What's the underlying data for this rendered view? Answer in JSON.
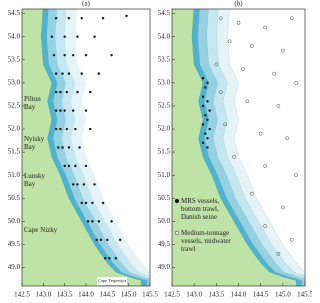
{
  "chart_data": [
    {
      "type": "scatter",
      "title": "(a)",
      "xlim": [
        142.5,
        145.5
      ],
      "ylim": [
        48.6,
        54.6
      ],
      "xticks": [
        142.5,
        {
          "value": 143,
          "label": "143.0"
        },
        143.5,
        {
          "value": 144,
          "label": "144.0"
        },
        144.5,
        {
          "value": 145,
          "label": "145.0"
        },
        145.5
      ],
      "yticks": [
        {
          "value": 49,
          "label": "49.0"
        },
        49.5,
        {
          "value": 50,
          "label": "50.0"
        },
        50.5,
        {
          "value": 51,
          "label": "51.0"
        },
        51.5,
        {
          "value": 52,
          "label": "52.0"
        },
        52.5,
        {
          "value": 53,
          "label": "53.0"
        },
        53.5,
        {
          "value": 54,
          "label": "54.0"
        },
        54.5
      ],
      "annotations": [
        "Piltun Bay",
        "Nyisky Bay",
        "Lunsky Bay",
        "Cape Nizky",
        "Cape Terpeniya"
      ],
      "series": [
        {
          "color": "#111111",
          "filled": true,
          "x": [
            143.3,
            143.6,
            143.9,
            144.4,
            143.2,
            143.5,
            143.8,
            144.2,
            143.25,
            143.5,
            143.7,
            144.0,
            144.6,
            143.3,
            143.45,
            143.6,
            143.9,
            144.3,
            143.3,
            143.4,
            143.55,
            143.8,
            144.1,
            143.3,
            143.4,
            143.5,
            143.7,
            144.0,
            143.3,
            143.4,
            143.55,
            143.75,
            144.1,
            143.35,
            143.45,
            143.6,
            143.85,
            143.5,
            143.6,
            143.75,
            144.0,
            143.7,
            143.8,
            143.95,
            144.2,
            143.9,
            144.0,
            144.15,
            144.4,
            144.05,
            144.15,
            144.3,
            144.6,
            144.25,
            144.35,
            144.5,
            144.8,
            144.45,
            144.55,
            144.7,
            144.95
          ],
          "y": [
            54.4,
            54.4,
            54.4,
            54.4,
            54.0,
            54.0,
            54.0,
            54.0,
            53.6,
            53.6,
            53.6,
            53.6,
            53.6,
            53.2,
            53.2,
            53.2,
            53.2,
            53.2,
            52.8,
            52.8,
            52.8,
            52.8,
            52.8,
            52.4,
            52.4,
            52.4,
            52.4,
            52.4,
            52.0,
            52.0,
            52.0,
            52.0,
            52.0,
            51.6,
            51.6,
            51.6,
            51.6,
            51.2,
            51.2,
            51.2,
            51.2,
            50.8,
            50.8,
            50.8,
            50.8,
            50.4,
            50.4,
            50.4,
            50.4,
            50.0,
            50.0,
            50.0,
            50.0,
            49.6,
            49.6,
            49.6,
            49.6,
            49.2,
            49.2,
            49.2,
            54.45
          ]
        }
      ]
    },
    {
      "type": "scatter",
      "title": "(b)",
      "xlim": [
        142.5,
        145.5
      ],
      "ylim": [
        48.6,
        54.6
      ],
      "xticks": [
        142.5,
        {
          "value": 143,
          "label": "143.0"
        },
        143.5,
        {
          "value": 144,
          "label": "144.0"
        },
        144.5,
        {
          "value": 145,
          "label": "145.0"
        },
        145.5
      ],
      "yticks": [
        {
          "value": 49,
          "label": "49.0"
        },
        49.5,
        {
          "value": 50,
          "label": "50.0"
        },
        50.5,
        {
          "value": 51,
          "label": "51.0"
        },
        51.5,
        {
          "value": 52,
          "label": "52.0"
        },
        52.5,
        {
          "value": 53,
          "label": "53.0"
        },
        53.5,
        {
          "value": 54,
          "label": "54.0"
        },
        54.5
      ],
      "series": [
        {
          "name": "MRS vessels, bottom trawl, Danish seine",
          "color": "#111111",
          "filled": true,
          "x": [
            143.2,
            143.25,
            143.2,
            143.3,
            143.2,
            143.25,
            143.3,
            143.2,
            143.25,
            143.3,
            143.2,
            143.3,
            143.35,
            143.35,
            143.3
          ],
          "y": [
            53.1,
            52.9,
            52.7,
            52.6,
            52.5,
            52.3,
            52.2,
            52.1,
            51.9,
            51.8,
            51.7,
            51.6,
            52.4,
            52.0,
            53.0
          ]
        },
        {
          "name": "Medium-tonnage vessels, midwater trawl",
          "color": "#444444",
          "filled": false,
          "x": [
            143.6,
            144.0,
            144.6,
            145.2,
            143.8,
            144.3,
            145.0,
            143.5,
            144.1,
            144.8,
            145.3,
            143.6,
            144.2,
            144.9,
            143.7,
            144.5,
            145.1,
            143.9,
            144.6,
            145.3,
            144.3,
            145.0,
            144.6,
            145.2,
            144.9
          ],
          "y": [
            54.4,
            54.3,
            54.2,
            54.4,
            53.9,
            53.8,
            53.7,
            53.4,
            53.3,
            53.2,
            53.0,
            52.8,
            52.6,
            52.5,
            52.1,
            51.9,
            51.8,
            51.4,
            51.2,
            51.0,
            50.6,
            50.3,
            49.9,
            49.6,
            49.3
          ]
        }
      ]
    }
  ]
}
